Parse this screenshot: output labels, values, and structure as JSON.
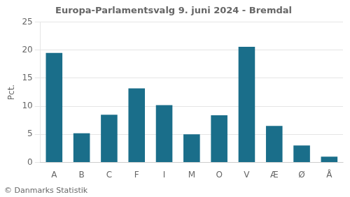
{
  "chart_data": {
    "type": "bar",
    "title": "Europa-Parlamentsvalg 9. juni 2024 - Bremdal",
    "ylabel": "Pct.",
    "footer": "© Danmarks Statistik",
    "categories": [
      "A",
      "B",
      "C",
      "F",
      "I",
      "M",
      "O",
      "V",
      "Æ",
      "Ø",
      "Å"
    ],
    "values": [
      19.5,
      5.2,
      8.5,
      13.2,
      10.2,
      5.0,
      8.4,
      20.6,
      6.5,
      3.0,
      1.0
    ],
    "color": "#1a6e8a",
    "ylim": [
      0,
      25
    ],
    "yticks": [
      0,
      5,
      10,
      15,
      20,
      25
    ],
    "grid": true
  }
}
